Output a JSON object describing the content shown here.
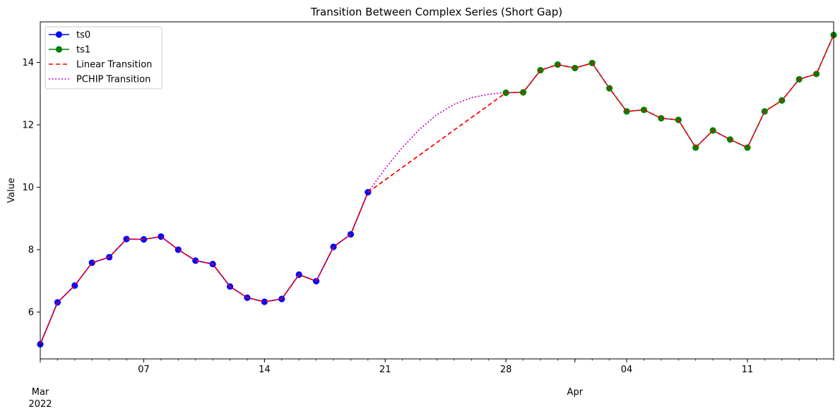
{
  "chart_data": {
    "type": "line",
    "title": "Transition Between Complex Series (Short Gap)",
    "xlabel": "",
    "ylabel": "Value",
    "xlim": [
      "2022-03-01",
      "2022-04-16"
    ],
    "ylim": [
      4.5,
      15.3
    ],
    "grid": false,
    "legend_position": "top-left",
    "x_ticks": [
      {
        "date": "2022-03-07",
        "label": "07"
      },
      {
        "date": "2022-03-14",
        "label": "14"
      },
      {
        "date": "2022-03-21",
        "label": "21"
      },
      {
        "date": "2022-03-28",
        "label": "28"
      },
      {
        "date": "2022-04-04",
        "label": "04"
      },
      {
        "date": "2022-04-11",
        "label": "11"
      }
    ],
    "x_month_labels": [
      {
        "date": "2022-03-01",
        "label": "Mar",
        "year": "2022"
      },
      {
        "date": "2022-04-01",
        "label": "Apr",
        "year": ""
      }
    ],
    "y_ticks": [
      6,
      8,
      10,
      12,
      14
    ],
    "series": [
      {
        "name": "ts0",
        "color": "#0000ff",
        "marker_fill": "#0000ff",
        "style": "solid",
        "marker": "circle",
        "x": [
          "2022-03-01",
          "2022-03-02",
          "2022-03-03",
          "2022-03-04",
          "2022-03-05",
          "2022-03-06",
          "2022-03-07",
          "2022-03-08",
          "2022-03-09",
          "2022-03-10",
          "2022-03-11",
          "2022-03-12",
          "2022-03-13",
          "2022-03-14",
          "2022-03-15",
          "2022-03-16",
          "2022-03-17",
          "2022-03-18",
          "2022-03-19",
          "2022-03-20"
        ],
        "y": [
          4.97,
          6.31,
          6.85,
          7.58,
          7.76,
          8.34,
          8.33,
          8.42,
          8.0,
          7.65,
          7.54,
          6.82,
          6.46,
          6.33,
          6.42,
          7.2,
          6.99,
          8.09,
          8.49,
          9.84
        ]
      },
      {
        "name": "ts1",
        "color": "#008000",
        "marker_fill": "#008000",
        "style": "solid",
        "marker": "circle",
        "x": [
          "2022-03-28",
          "2022-03-29",
          "2022-03-30",
          "2022-03-31",
          "2022-04-01",
          "2022-04-02",
          "2022-04-03",
          "2022-04-04",
          "2022-04-05",
          "2022-04-06",
          "2022-04-07",
          "2022-04-08",
          "2022-04-09",
          "2022-04-10",
          "2022-04-11",
          "2022-04-12",
          "2022-04-13",
          "2022-04-14",
          "2022-04-15",
          "2022-04-16"
        ],
        "y": [
          13.03,
          13.04,
          13.75,
          13.93,
          13.82,
          13.98,
          13.17,
          12.43,
          12.48,
          12.21,
          12.16,
          11.27,
          11.82,
          11.53,
          11.27,
          12.43,
          12.78,
          13.46,
          13.63,
          14.88
        ]
      },
      {
        "name": "Linear Transition",
        "color": "#ff0000",
        "style": "dashed",
        "marker": "none",
        "x": [
          "2022-03-01",
          "2022-03-02",
          "2022-03-03",
          "2022-03-04",
          "2022-03-05",
          "2022-03-06",
          "2022-03-07",
          "2022-03-08",
          "2022-03-09",
          "2022-03-10",
          "2022-03-11",
          "2022-03-12",
          "2022-03-13",
          "2022-03-14",
          "2022-03-15",
          "2022-03-16",
          "2022-03-17",
          "2022-03-18",
          "2022-03-19",
          "2022-03-20",
          "2022-03-28",
          "2022-03-29",
          "2022-03-30",
          "2022-03-31",
          "2022-04-01",
          "2022-04-02",
          "2022-04-03",
          "2022-04-04",
          "2022-04-05",
          "2022-04-06",
          "2022-04-07",
          "2022-04-08",
          "2022-04-09",
          "2022-04-10",
          "2022-04-11",
          "2022-04-12",
          "2022-04-13",
          "2022-04-14",
          "2022-04-15",
          "2022-04-16"
        ],
        "y": [
          4.97,
          6.31,
          6.85,
          7.58,
          7.76,
          8.34,
          8.33,
          8.42,
          8.0,
          7.65,
          7.54,
          6.82,
          6.46,
          6.33,
          6.42,
          7.2,
          6.99,
          8.09,
          8.49,
          9.84,
          13.03,
          13.04,
          13.75,
          13.93,
          13.82,
          13.98,
          13.17,
          12.43,
          12.48,
          12.21,
          12.16,
          11.27,
          11.82,
          11.53,
          11.27,
          12.43,
          12.78,
          13.46,
          13.63,
          14.88
        ]
      },
      {
        "name": "PCHIP Transition",
        "color": "#bf00bf",
        "style": "dotted",
        "marker": "none",
        "x": [
          "2022-03-01",
          "2022-03-02",
          "2022-03-03",
          "2022-03-04",
          "2022-03-05",
          "2022-03-06",
          "2022-03-07",
          "2022-03-08",
          "2022-03-09",
          "2022-03-10",
          "2022-03-11",
          "2022-03-12",
          "2022-03-13",
          "2022-03-14",
          "2022-03-15",
          "2022-03-16",
          "2022-03-17",
          "2022-03-18",
          "2022-03-19",
          "2022-03-20",
          "2022-03-21",
          "2022-03-22",
          "2022-03-23",
          "2022-03-24",
          "2022-03-25",
          "2022-03-26",
          "2022-03-27",
          "2022-03-28",
          "2022-03-29",
          "2022-03-30",
          "2022-03-31",
          "2022-04-01",
          "2022-04-02",
          "2022-04-03",
          "2022-04-04",
          "2022-04-05",
          "2022-04-06",
          "2022-04-07",
          "2022-04-08",
          "2022-04-09",
          "2022-04-10",
          "2022-04-11",
          "2022-04-12",
          "2022-04-13",
          "2022-04-14",
          "2022-04-15",
          "2022-04-16"
        ],
        "y": [
          4.97,
          6.31,
          6.85,
          7.58,
          7.76,
          8.34,
          8.33,
          8.42,
          8.0,
          7.65,
          7.54,
          6.82,
          6.46,
          6.33,
          6.42,
          7.2,
          6.99,
          8.09,
          8.49,
          9.84,
          10.6,
          11.28,
          11.86,
          12.33,
          12.66,
          12.87,
          12.98,
          13.03,
          13.04,
          13.75,
          13.93,
          13.82,
          13.98,
          13.17,
          12.43,
          12.48,
          12.21,
          12.16,
          11.27,
          11.82,
          11.53,
          11.27,
          12.43,
          12.78,
          13.46,
          13.63,
          14.88
        ]
      }
    ]
  }
}
